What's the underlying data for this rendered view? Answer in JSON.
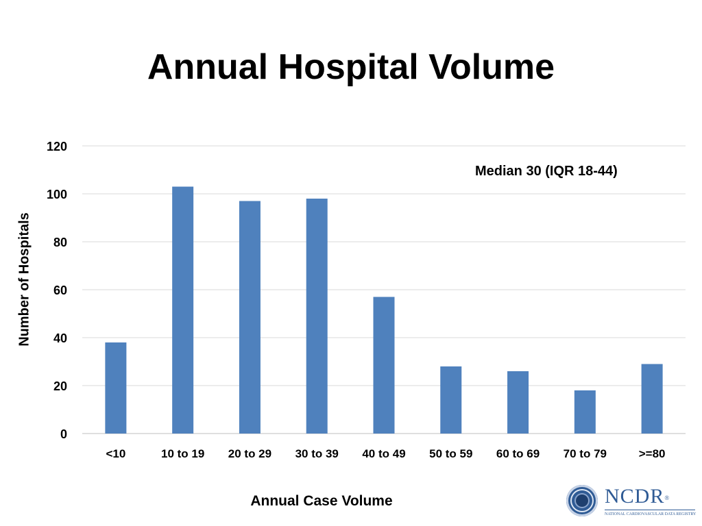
{
  "slide": {
    "title": "Annual Hospital Volume"
  },
  "chart_data": {
    "type": "bar",
    "title": "",
    "xlabel": "Annual Case Volume",
    "ylabel": "Number of Hospitals",
    "categories": [
      "<10",
      "10 to 19",
      "20 to 29",
      "30 to 39",
      "40 to 49",
      "50 to 59",
      "60 to 69",
      "70 to 79",
      ">=80"
    ],
    "values": [
      38,
      103,
      97,
      98,
      57,
      28,
      26,
      18,
      29
    ],
    "ylim": [
      0,
      120
    ],
    "yticks": [
      0,
      20,
      40,
      60,
      80,
      100,
      120
    ],
    "grid": true,
    "legend": "none",
    "annotation": "Median 30 (IQR 18-44)",
    "bar_color": "#4f81bd",
    "grid_color": "#d9d9d9"
  },
  "logo": {
    "name": "NCDR",
    "registered_mark": "®",
    "subtitle": "NATIONAL CARDIOVASCULAR DATA REGISTRY",
    "seal_icon": "acc-seal-icon",
    "brand_color": "#2f5b95"
  }
}
